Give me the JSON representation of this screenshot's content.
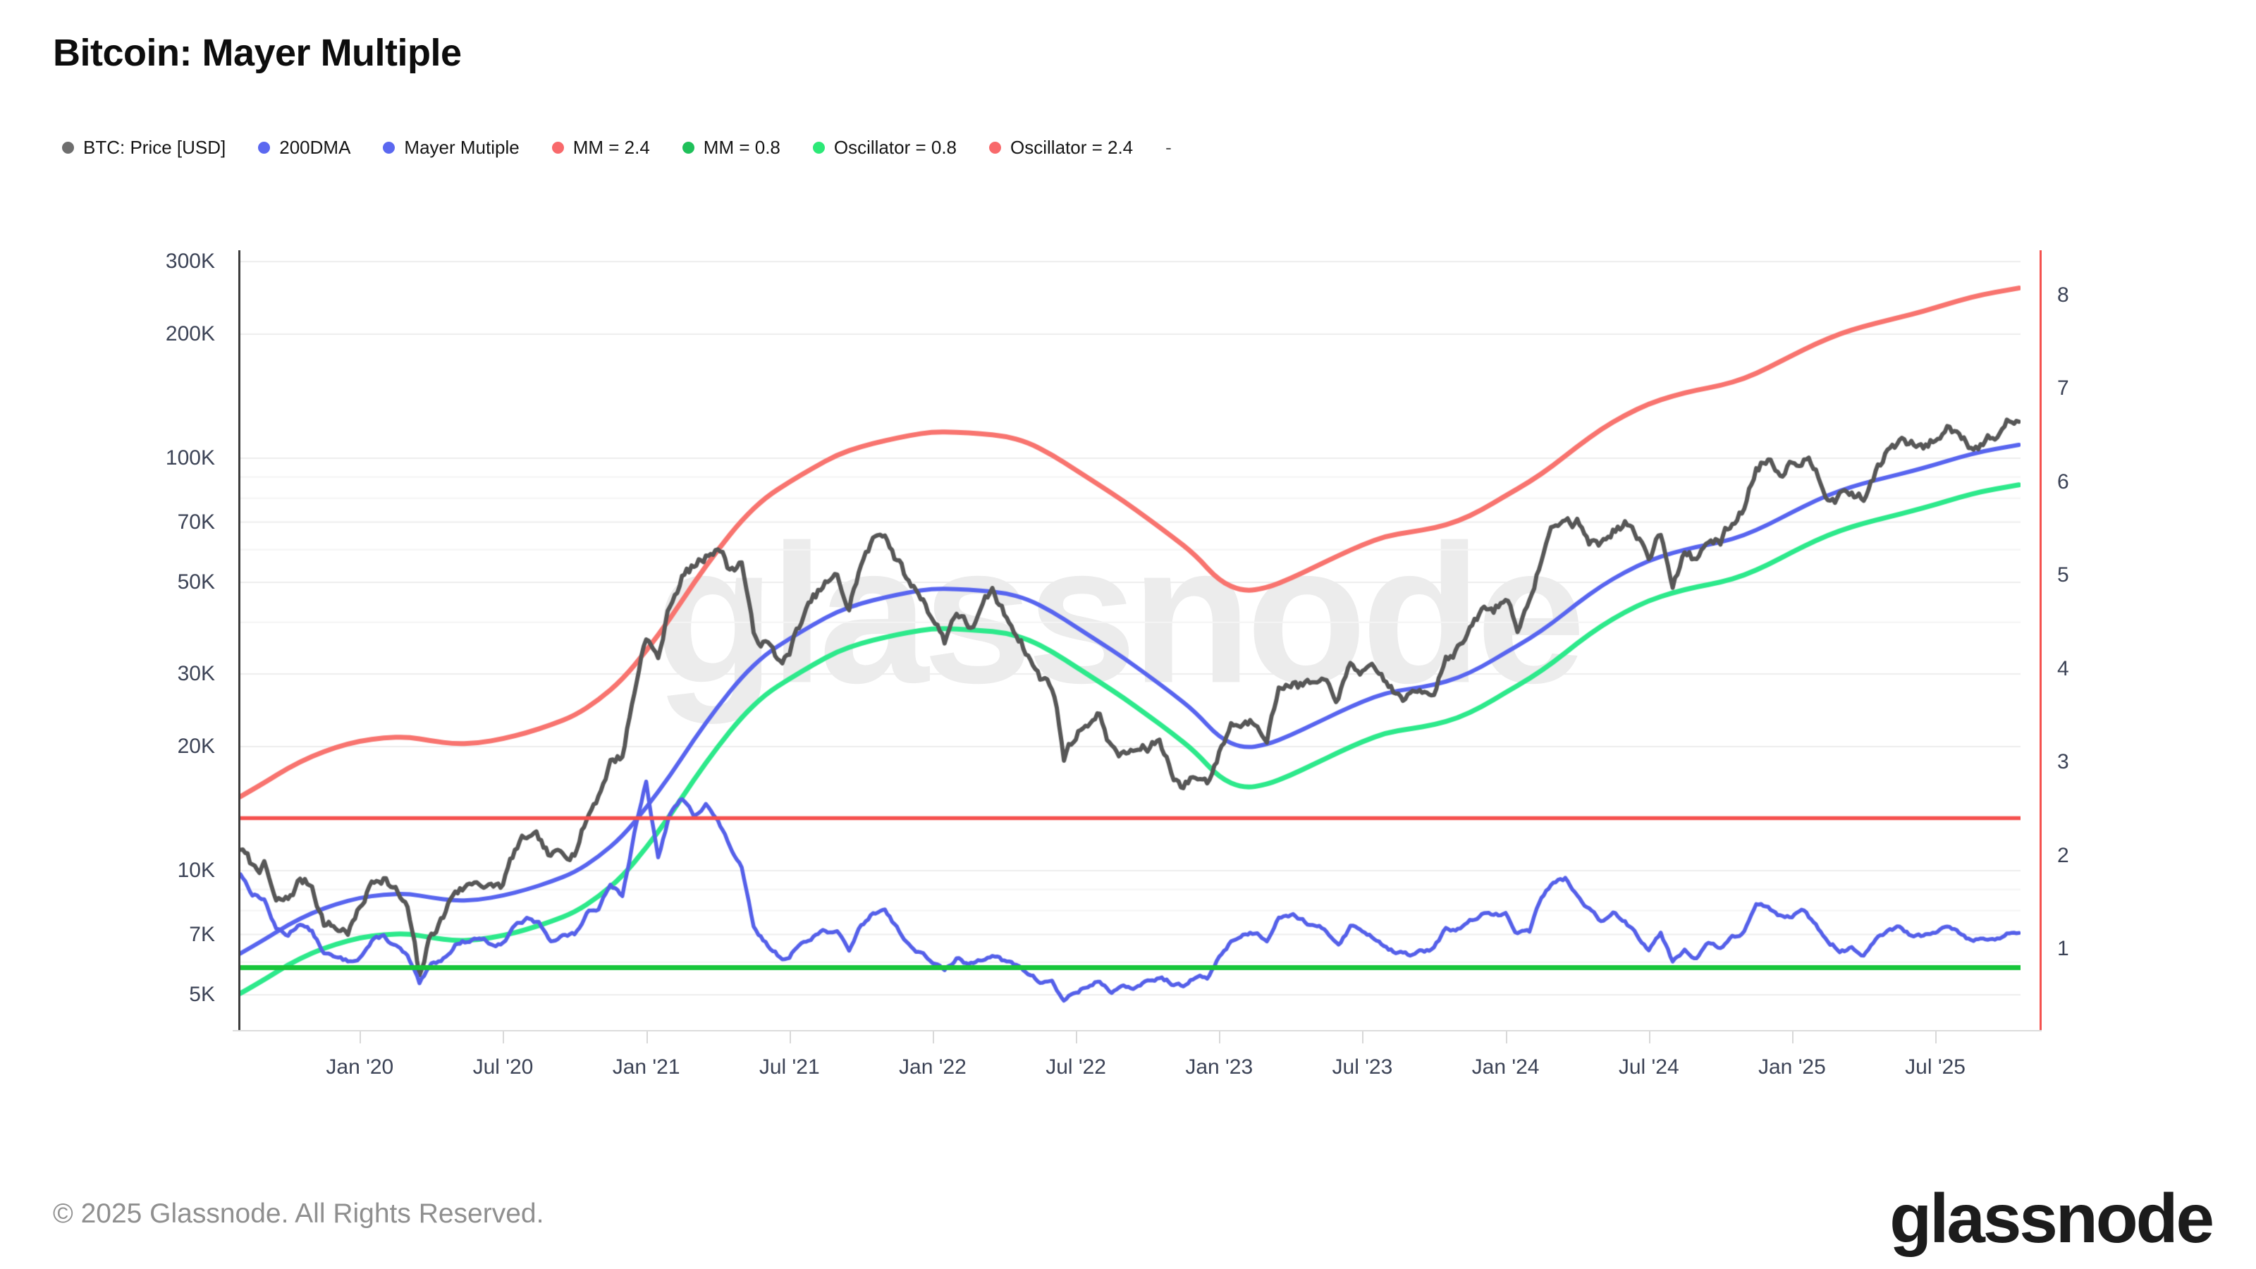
{
  "header": {
    "title": "Bitcoin: Mayer Multiple"
  },
  "legend": {
    "items": [
      {
        "label": "BTC: Price [USD]",
        "color": "#6e6e6e"
      },
      {
        "label": "200DMA",
        "color": "#5b68f0"
      },
      {
        "label": "Mayer Mutiple",
        "color": "#5b68f0"
      },
      {
        "label": "MM = 2.4",
        "color": "#f8696b"
      },
      {
        "label": "MM = 0.8",
        "color": "#1fc05a"
      },
      {
        "label": "Oscillator = 0.8",
        "color": "#2ce977"
      },
      {
        "label": "Oscillator = 2.4",
        "color": "#f8696b"
      },
      {
        "label": "-",
        "color": null
      }
    ]
  },
  "watermark": {
    "text": "glassnode"
  },
  "footer": {
    "copyright": "© 2025 Glassnode. All Rights Reserved.",
    "brand": "glassnode"
  },
  "chart_data": {
    "type": "line",
    "title": "Bitcoin: Mayer Multiple",
    "x_axis": {
      "start_month": "2019-08",
      "end_month": "2025-10",
      "tick_labels": [
        "Jan '20",
        "Jul '20",
        "Jan '21",
        "Jul '21",
        "Jan '22",
        "Jul '22",
        "Jan '23",
        "Jul '23",
        "Jan '24",
        "Jul '24",
        "Jan '25",
        "Jul '25"
      ],
      "tick_month_index": [
        5,
        11,
        17,
        23,
        29,
        35,
        41,
        47,
        53,
        59,
        65,
        71
      ]
    },
    "y_axis_left": {
      "scale": "log",
      "unit": "USD",
      "tick_labels": [
        "300K",
        "200K",
        "100K",
        "70K",
        "50K",
        "30K",
        "20K",
        "10K",
        "7K",
        "5K"
      ],
      "tick_values_k": [
        300,
        200,
        100,
        70,
        50,
        30,
        20,
        10,
        7,
        5
      ],
      "range_k": [
        4.4,
        319
      ]
    },
    "y_axis_right": {
      "scale": "linear",
      "tick_labels": [
        "8",
        "7",
        "6",
        "5",
        "4",
        "3",
        "2",
        "1"
      ],
      "tick_values": [
        8,
        7,
        6,
        5,
        4,
        3,
        2,
        1
      ],
      "range": [
        0.25,
        8.5
      ]
    },
    "gridline_values_k": [
      300,
      200,
      100,
      90,
      80,
      70,
      60,
      50,
      40,
      30,
      20,
      10,
      9,
      8,
      7,
      6,
      5
    ],
    "thresholds": {
      "oscillator_upper": 2.4,
      "oscillator_lower": 0.8,
      "mm_upper_multiplier": 2.4,
      "mm_lower_multiplier": 0.8
    },
    "series": [
      {
        "name": "BTC: Price [USD]",
        "axis": "left",
        "color": "#575757",
        "width": 6,
        "samples_per_month": 2,
        "values_k_usd": [
          11.4,
          10.1,
          10.3,
          8.2,
          8.3,
          9.4,
          9.2,
          7.6,
          7.3,
          7.2,
          8.0,
          9.3,
          9.9,
          9.0,
          8.0,
          5.3,
          6.9,
          7.7,
          9.0,
          9.2,
          9.6,
          9.1,
          9.2,
          11.0,
          11.8,
          11.4,
          10.3,
          10.8,
          11.4,
          13.5,
          15.5,
          18.7,
          19.2,
          27.0,
          38.0,
          32.5,
          44.0,
          52.0,
          54.5,
          57.5,
          63.0,
          54.0,
          57.0,
          36.5,
          36.0,
          32.0,
          33.5,
          40.0,
          44.5,
          48.5,
          50.0,
          42.5,
          55.0,
          62.0,
          66.5,
          57.5,
          49.5,
          46.5,
          42.0,
          36.5,
          43.5,
          39.0,
          42.0,
          46.5,
          41.0,
          38.5,
          34.0,
          29.5,
          28.5,
          19.0,
          21.5,
          23.5,
          24.0,
          20.0,
          19.0,
          19.5,
          19.5,
          20.5,
          17.5,
          16.2,
          17.0,
          16.6,
          19.5,
          23.0,
          23.0,
          23.5,
          22.5,
          28.0,
          29.5,
          28.5,
          28.0,
          27.0,
          26.0,
          30.5,
          30.5,
          29.2,
          28.0,
          26.0,
          26.0,
          27.0,
          28.0,
          34.0,
          35.5,
          37.8,
          42.0,
          42.5,
          46.0,
          40.0,
          43.5,
          57.0,
          68.5,
          70.0,
          69.5,
          63.5,
          62.0,
          68.5,
          69.5,
          61.5,
          57.5,
          67.0,
          52.0,
          59.5,
          56.5,
          64.0,
          62.5,
          69.5,
          76.0,
          95.5,
          101.5,
          95.0,
          102.0,
          104.5,
          97.0,
          86.0,
          83.5,
          84.0,
          79.0,
          93.5,
          104.0,
          108.5,
          105.5,
          105.0,
          110.0,
          118.0,
          116.5,
          110.0,
          112.5,
          114.0,
          122.5,
          124.0
        ]
      },
      {
        "name": "200DMA",
        "axis": "left",
        "color": "#5865ef",
        "width": 6,
        "samples_per_month": 1,
        "values_k_usd": [
          6.3,
          6.8,
          7.4,
          7.9,
          8.3,
          8.6,
          8.75,
          8.8,
          8.6,
          8.45,
          8.5,
          8.7,
          9.0,
          9.4,
          9.9,
          10.8,
          12.1,
          14.2,
          17.0,
          20.8,
          25.0,
          29.5,
          33.5,
          36.5,
          39.5,
          42.5,
          44.5,
          46.0,
          47.3,
          48.3,
          48.2,
          47.8,
          47.2,
          45.5,
          42.5,
          39.0,
          35.8,
          32.8,
          29.8,
          27.0,
          24.3,
          21.0,
          19.8,
          20.2,
          21.3,
          22.7,
          24.2,
          25.7,
          27.0,
          27.6,
          28.2,
          29.3,
          31.2,
          33.8,
          36.5,
          40.0,
          44.5,
          49.0,
          53.0,
          56.5,
          59.0,
          61.0,
          62.5,
          65.0,
          69.0,
          74.0,
          79.0,
          83.5,
          87.0,
          90.0,
          93.0,
          96.5,
          100.5,
          104.0,
          106.5
        ]
      },
      {
        "name": "MM = 2.4",
        "axis": "left",
        "color": "#f8746f",
        "width": 7,
        "derived_from": "200DMA",
        "multiplier": 2.4
      },
      {
        "name": "MM = 0.8",
        "axis": "left",
        "color": "#2de98b",
        "width": 7,
        "derived_from": "200DMA",
        "multiplier": 0.8
      },
      {
        "name": "Mayer Mutiple",
        "axis": "right",
        "color": "#5560e9",
        "width": 5.5,
        "samples_per_month": 2,
        "values": [
          1.81,
          1.6,
          1.54,
          1.21,
          1.15,
          1.29,
          1.18,
          0.96,
          0.89,
          0.86,
          0.93,
          1.08,
          1.13,
          1.03,
          0.91,
          0.6,
          0.8,
          0.89,
          1.06,
          1.09,
          1.13,
          1.07,
          1.06,
          1.26,
          1.31,
          1.26,
          1.1,
          1.15,
          1.15,
          1.36,
          1.44,
          1.73,
          1.59,
          2.23,
          2.77,
          1.95,
          2.45,
          2.6,
          2.42,
          2.58,
          2.36,
          2.1,
          1.85,
          1.2,
          1.05,
          0.94,
          0.9,
          1.07,
          1.16,
          1.21,
          1.16,
          0.99,
          1.25,
          1.38,
          1.44,
          1.24,
          1.04,
          0.97,
          0.87,
          0.75,
          0.9,
          0.81,
          0.88,
          0.97,
          0.87,
          0.81,
          0.74,
          0.64,
          0.66,
          0.44,
          0.54,
          0.6,
          0.66,
          0.55,
          0.57,
          0.59,
          0.64,
          0.69,
          0.64,
          0.59,
          0.69,
          0.68,
          0.91,
          1.09,
          1.16,
          1.18,
          1.11,
          1.38,
          1.39,
          1.33,
          1.23,
          1.18,
          1.07,
          1.25,
          1.19,
          1.13,
          1.04,
          0.96,
          0.94,
          0.97,
          0.99,
          1.2,
          1.21,
          1.29,
          1.35,
          1.36,
          1.36,
          1.18,
          1.19,
          1.56,
          1.71,
          1.75,
          1.56,
          1.43,
          1.27,
          1.4,
          1.31,
          1.16,
          1.02,
          1.19,
          0.88,
          1.01,
          0.93,
          1.05,
          1.0,
          1.11,
          1.17,
          1.47,
          1.47,
          1.38,
          1.38,
          1.41,
          1.23,
          1.09,
          1.0,
          1.01,
          0.91,
          1.07,
          1.16,
          1.21,
          1.13,
          1.13,
          1.14,
          1.22,
          1.16,
          1.09,
          1.08,
          1.1,
          1.15,
          1.16
        ]
      },
      {
        "name": "Oscillator = 2.4",
        "axis": "right",
        "color": "#f5504e",
        "width": 5.5,
        "constant": 2.4
      },
      {
        "name": "Oscillator = 0.8",
        "axis": "right",
        "color": "#17c53a",
        "width": 7,
        "constant": 0.8
      }
    ],
    "legend_position": "top-left",
    "grid": "horizontal-only"
  }
}
